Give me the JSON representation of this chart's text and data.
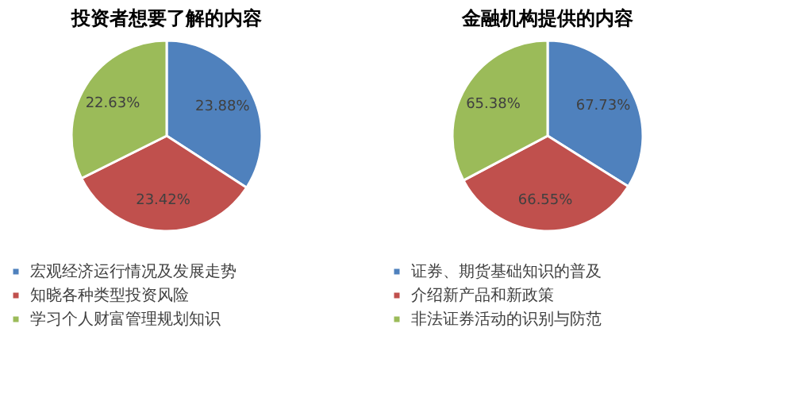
{
  "chart_data": [
    {
      "type": "pie",
      "title": "投资者想要了解的内容",
      "categories": [
        "宏观经济运行情况及发展走势",
        "知晓各种类型投资风险",
        "学习个人财富管理规划知识"
      ],
      "values": [
        23.88,
        23.42,
        22.63
      ],
      "colors": [
        "#4f81bd",
        "#c0504d",
        "#9bbb59"
      ],
      "value_labels": [
        "23.88%",
        "23.42%",
        "22.63%"
      ],
      "legend": "bottom"
    },
    {
      "type": "pie",
      "title": "金融机构提供的内容",
      "categories": [
        "证券、期货基础知识的普及",
        "介绍新产品和新政策",
        "非法证券活动的识别与防范"
      ],
      "values": [
        67.73,
        66.55,
        65.38
      ],
      "colors": [
        "#4f81bd",
        "#c0504d",
        "#9bbb59"
      ],
      "value_labels": [
        "67.73%",
        "66.55%",
        "65.38%"
      ],
      "legend": "bottom"
    }
  ]
}
